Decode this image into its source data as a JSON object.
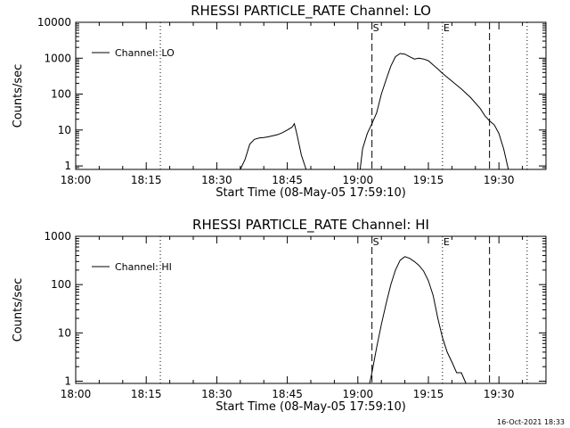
{
  "chart_data": [
    {
      "type": "line",
      "title": "RHESSI PARTICLE_RATE Channel: LO",
      "xlabel": "Start Time (08-May-05 17:59:10)",
      "ylabel": "Counts/sec",
      "yscale": "log",
      "ylim": [
        0.8,
        10000
      ],
      "xlim": [
        "18:00",
        "19:40"
      ],
      "x_ticks": [
        "18:00",
        "18:15",
        "18:30",
        "18:45",
        "19:00",
        "19:15",
        "19:30"
      ],
      "y_ticks": [
        "1",
        "10",
        "100",
        "1000",
        "10000"
      ],
      "grid": false,
      "legend": {
        "position": "top-left",
        "entries": [
          "Channel: LO"
        ]
      },
      "markers": [
        {
          "label": "S",
          "style": "dashed",
          "time": "19:03"
        },
        {
          "label": "E",
          "style": "dotted",
          "time": "19:18"
        }
      ],
      "extra_lines": [
        {
          "style": "dotted",
          "time": "18:18"
        },
        {
          "style": "dashed",
          "time": "19:28"
        },
        {
          "style": "dotted",
          "time": "19:36"
        }
      ],
      "series": [
        {
          "values": [
            [
              "18:35",
              0.8
            ],
            [
              "18:36",
              1.5
            ],
            [
              "18:37",
              4
            ],
            [
              "18:38",
              5.5
            ],
            [
              "18:39",
              6
            ],
            [
              "18:40",
              6.2
            ],
            [
              "18:41",
              6.5
            ],
            [
              "18:42",
              7
            ],
            [
              "18:43",
              7.5
            ],
            [
              "18:44",
              8.5
            ],
            [
              "18:45",
              10
            ],
            [
              "18:46",
              12
            ],
            [
              "18:46.5",
              15
            ],
            [
              "18:47",
              8
            ],
            [
              "18:48",
              2
            ],
            [
              "18:49",
              0.8
            ],
            [
              "19:00.5",
              0.8
            ],
            [
              "19:01",
              3
            ],
            [
              "19:02",
              8
            ],
            [
              "19:03",
              15
            ],
            [
              "19:04",
              30
            ],
            [
              "19:05",
              100
            ],
            [
              "19:06",
              250
            ],
            [
              "19:07",
              600
            ],
            [
              "19:08",
              1100
            ],
            [
              "19:09",
              1350
            ],
            [
              "19:10",
              1300
            ],
            [
              "19:11",
              1100
            ],
            [
              "19:12",
              950
            ],
            [
              "19:13",
              1000
            ],
            [
              "19:14",
              950
            ],
            [
              "19:15",
              850
            ],
            [
              "19:16",
              650
            ],
            [
              "19:17",
              500
            ],
            [
              "19:18",
              380
            ],
            [
              "19:20",
              230
            ],
            [
              "19:22",
              140
            ],
            [
              "19:24",
              80
            ],
            [
              "19:26",
              40
            ],
            [
              "19:27",
              25
            ],
            [
              "19:28",
              18
            ],
            [
              "19:29",
              14
            ],
            [
              "19:30",
              8
            ],
            [
              "19:31",
              3
            ],
            [
              "19:32",
              0.8
            ]
          ]
        }
      ]
    },
    {
      "type": "line",
      "title": "RHESSI PARTICLE_RATE Channel: HI",
      "xlabel": "Start Time (08-May-05 17:59:10)",
      "ylabel": "Counts/sec",
      "yscale": "log",
      "ylim": [
        0.9,
        1000
      ],
      "xlim": [
        "18:00",
        "19:40"
      ],
      "x_ticks": [
        "18:00",
        "18:15",
        "18:30",
        "18:45",
        "19:00",
        "19:15",
        "19:30"
      ],
      "y_ticks": [
        "1",
        "10",
        "100",
        "1000"
      ],
      "grid": false,
      "legend": {
        "position": "top-left",
        "entries": [
          "Channel: HI"
        ]
      },
      "markers": [
        {
          "label": "S",
          "style": "dashed",
          "time": "19:03"
        },
        {
          "label": "E",
          "style": "dotted",
          "time": "19:18"
        }
      ],
      "extra_lines": [
        {
          "style": "dotted",
          "time": "18:18"
        },
        {
          "style": "dashed",
          "time": "19:28"
        },
        {
          "style": "dotted",
          "time": "19:36"
        }
      ],
      "series": [
        {
          "values": [
            [
              "19:02.5",
              0.9
            ],
            [
              "19:03",
              1.5
            ],
            [
              "19:04",
              5
            ],
            [
              "19:05",
              15
            ],
            [
              "19:06",
              40
            ],
            [
              "19:07",
              100
            ],
            [
              "19:08",
              200
            ],
            [
              "19:09",
              320
            ],
            [
              "19:10",
              380
            ],
            [
              "19:11",
              350
            ],
            [
              "19:12",
              300
            ],
            [
              "19:13",
              250
            ],
            [
              "19:14",
              190
            ],
            [
              "19:15",
              120
            ],
            [
              "19:16",
              60
            ],
            [
              "19:17",
              20
            ],
            [
              "19:18",
              8
            ],
            [
              "19:19",
              4
            ],
            [
              "19:20",
              2.5
            ],
            [
              "19:21",
              1.5
            ],
            [
              "19:22",
              1.5
            ],
            [
              "19:23",
              0.9
            ]
          ]
        }
      ]
    }
  ],
  "footer_timestamp": "16-Oct-2021 18:33"
}
